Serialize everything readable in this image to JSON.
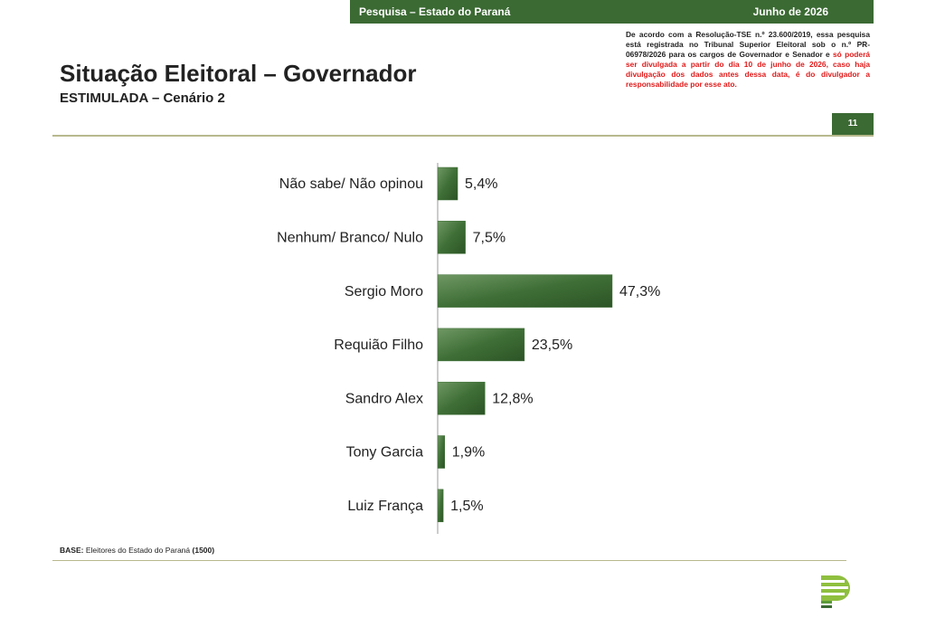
{
  "header": {
    "survey": "Pesquisa – Estado do Paraná",
    "date": "Junho de 2026"
  },
  "title": "Situação Eleitoral – Governador",
  "subtitle": "ESTIMULADA – Cenário 2",
  "disclaimer": {
    "text": "De acordo com a Resolução-TSE n.º 23.600/2019, essa pesquisa está registrada no Tribunal Superior Eleitoral sob o n.º PR-06978/2026 para os cargos de Governador e Senador e ",
    "warning": "só poderá ser divulgada a partir do dia 10 de junho de 2026, caso haja divulgação dos dados antes dessa data, é do divulgador a responsabilidade por esse ato."
  },
  "page_number": "11",
  "base": {
    "label": "BASE:",
    "text": "Eleitores do Estado do Paraná",
    "count": "(1500)"
  },
  "chart_data": {
    "type": "bar",
    "orientation": "horizontal",
    "categories": [
      "Não sabe/ Não opinou",
      "Nenhum/ Branco/ Nulo",
      "Sergio Moro",
      "Requião Filho",
      "Sandro Alex",
      "Tony Garcia",
      "Luiz França"
    ],
    "values": [
      5.4,
      7.5,
      47.3,
      23.5,
      12.8,
      1.9,
      1.5
    ],
    "value_labels": [
      "5,4%",
      "7,5%",
      "47,3%",
      "23,5%",
      "12,8%",
      "1,9%",
      "1,5%"
    ],
    "color": "#3f6f36"
  }
}
